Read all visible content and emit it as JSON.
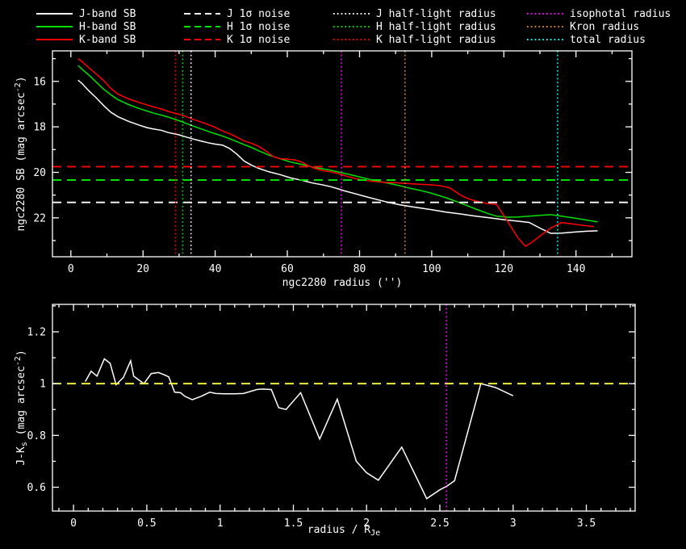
{
  "figure": {
    "bg": "#000000",
    "fg": "#ffffff",
    "object": "ngc2280"
  },
  "legend": {
    "columns": [
      {
        "items": [
          {
            "label": "J-band SB",
            "color": "#ffffff",
            "style": "solid"
          },
          {
            "label": "H-band SB",
            "color": "#00e000",
            "style": "solid"
          },
          {
            "label": "K-band SB",
            "color": "#ff0000",
            "style": "solid"
          }
        ]
      },
      {
        "items": [
          {
            "label": "J 1σ noise",
            "color": "#ffffff",
            "style": "dashed"
          },
          {
            "label": "H 1σ noise",
            "color": "#00e000",
            "style": "dashed"
          },
          {
            "label": "K 1σ noise",
            "color": "#ff0000",
            "style": "dashed"
          }
        ]
      },
      {
        "items": [
          {
            "label": "J half-light radius",
            "color": "#ffffff",
            "style": "dotted"
          },
          {
            "label": "H half-light radius",
            "color": "#00e000",
            "style": "dotted"
          },
          {
            "label": "K half-light radius",
            "color": "#ff0000",
            "style": "dotted"
          }
        ]
      },
      {
        "items": [
          {
            "label": "isophotal radius",
            "color": "#ff00ff",
            "style": "dotted"
          },
          {
            "label": "Kron radius",
            "color": "#e8822a",
            "style": "dotted"
          },
          {
            "label": "total radius",
            "color": "#00ffff",
            "style": "dotted"
          }
        ]
      }
    ]
  },
  "chart_data": [
    {
      "type": "line",
      "name": "sb-profile-plot",
      "xlabel": "ngc2280 radius ('')",
      "ylabel": "ngc2280 SB (mag arcsec^-2)",
      "xlabel_segments": [
        {
          "t": "ngc2280 radius ('')"
        }
      ],
      "ylabel_segments": [
        {
          "t": "ngc2280 SB (mag arcsec"
        },
        {
          "t": "-2",
          "pos": "sup"
        },
        {
          "t": ")"
        }
      ],
      "xlim": [
        -5.1,
        155.5
      ],
      "ylim": [
        14.66,
        23.71
      ],
      "y_inverted": true,
      "x_ticks": [
        0,
        20,
        40,
        60,
        80,
        100,
        120,
        140
      ],
      "x_tick_labels": [
        "0",
        "20",
        "40",
        "60",
        "80",
        "100",
        "120",
        "140"
      ],
      "x_minor": 10,
      "y_ticks": [
        16,
        18,
        20,
        22
      ],
      "y_tick_labels": [
        "16",
        "18",
        "20",
        "22"
      ],
      "y_minor": 1,
      "grid": false,
      "series": [
        {
          "name": "J-band SB",
          "color": "#ffffff",
          "style": "solid",
          "x": [
            2,
            3,
            5,
            7,
            9,
            11,
            13,
            16,
            19,
            21,
            23,
            25,
            27,
            30,
            32,
            34,
            36,
            38,
            40,
            42,
            44,
            46,
            48,
            50,
            52,
            55,
            58,
            61,
            64,
            67,
            70,
            72,
            74,
            76,
            79,
            82,
            85,
            88,
            91,
            94,
            97,
            100,
            104,
            108,
            112,
            116,
            120,
            124,
            127,
            130,
            133,
            136,
            140,
            143,
            146
          ],
          "y": [
            15.95,
            16.08,
            16.42,
            16.72,
            17.05,
            17.35,
            17.55,
            17.76,
            17.93,
            18.03,
            18.1,
            18.15,
            18.25,
            18.35,
            18.45,
            18.54,
            18.62,
            18.7,
            18.76,
            18.8,
            18.95,
            19.2,
            19.5,
            19.68,
            19.82,
            19.98,
            20.1,
            20.25,
            20.35,
            20.47,
            20.56,
            20.63,
            20.72,
            20.82,
            20.95,
            21.08,
            21.2,
            21.32,
            21.42,
            21.5,
            21.57,
            21.64,
            21.75,
            21.83,
            21.92,
            22.0,
            22.08,
            22.15,
            22.2,
            22.45,
            22.68,
            22.67,
            22.62,
            22.59,
            22.57
          ]
        },
        {
          "name": "H-band SB",
          "color": "#00e000",
          "style": "solid",
          "x": [
            2,
            3,
            5,
            7,
            9,
            11,
            13,
            16,
            19,
            21,
            23,
            25,
            27,
            30,
            32,
            34,
            36,
            38,
            40,
            42,
            44,
            46,
            48,
            50,
            52,
            55,
            58,
            61,
            64,
            67,
            70,
            72,
            74,
            76,
            79,
            82,
            85,
            88,
            91,
            94,
            97,
            100,
            104,
            108,
            112,
            115,
            118,
            121,
            124,
            127,
            130,
            133,
            136,
            140,
            143,
            146
          ],
          "y": [
            15.3,
            15.45,
            15.73,
            16.03,
            16.33,
            16.58,
            16.8,
            17.02,
            17.2,
            17.3,
            17.4,
            17.48,
            17.57,
            17.73,
            17.85,
            17.97,
            18.08,
            18.2,
            18.3,
            18.4,
            18.52,
            18.65,
            18.78,
            18.9,
            19.05,
            19.25,
            19.4,
            19.55,
            19.65,
            19.77,
            19.85,
            19.91,
            19.98,
            20.05,
            20.16,
            20.28,
            20.38,
            20.48,
            20.58,
            20.7,
            20.8,
            20.92,
            21.12,
            21.35,
            21.6,
            21.78,
            21.93,
            21.97,
            21.96,
            21.93,
            21.89,
            21.86,
            21.93,
            22.02,
            22.1,
            22.18
          ]
        },
        {
          "name": "K-band SB",
          "color": "#ff0000",
          "style": "solid",
          "x": [
            2,
            3,
            5,
            7,
            9,
            11,
            13,
            16,
            19,
            21,
            23,
            25,
            27,
            30,
            32,
            34,
            36,
            38,
            40,
            42,
            44,
            46,
            48,
            50,
            52,
            54,
            56,
            58,
            60,
            62,
            64,
            66,
            68,
            70,
            72,
            74,
            76,
            79,
            81,
            84,
            87,
            90,
            93,
            96,
            99,
            102,
            105,
            108,
            110,
            112,
            114,
            116,
            118,
            120,
            122,
            124,
            126,
            128,
            130,
            133,
            136,
            139,
            142,
            145
          ],
          "y": [
            15.0,
            15.12,
            15.4,
            15.68,
            15.95,
            16.3,
            16.55,
            16.77,
            16.93,
            17.03,
            17.13,
            17.21,
            17.32,
            17.45,
            17.55,
            17.68,
            17.78,
            17.9,
            18.02,
            18.18,
            18.3,
            18.45,
            18.62,
            18.72,
            18.85,
            19.05,
            19.3,
            19.4,
            19.42,
            19.45,
            19.55,
            19.72,
            19.85,
            19.93,
            19.98,
            20.05,
            20.15,
            20.28,
            20.34,
            20.4,
            20.44,
            20.46,
            20.49,
            20.52,
            20.54,
            20.58,
            20.68,
            21.0,
            21.15,
            21.25,
            21.33,
            21.38,
            21.41,
            21.9,
            22.4,
            22.9,
            23.25,
            23.05,
            22.8,
            22.45,
            22.21,
            22.27,
            22.33,
            22.39
          ]
        }
      ],
      "h_lines": [
        {
          "name": "J 1σ noise",
          "color": "#ffffff",
          "style": "dashed",
          "y": 21.32
        },
        {
          "name": "H 1σ noise",
          "color": "#00e000",
          "style": "dashed",
          "y": 20.34
        },
        {
          "name": "K 1σ noise",
          "color": "#ff0000",
          "style": "dashed",
          "y": 19.75
        }
      ],
      "v_lines": [
        {
          "name": "K half-light radius",
          "color": "#ff0000",
          "style": "dotted",
          "x": 29.0
        },
        {
          "name": "H half-light radius",
          "color": "#00e000",
          "style": "dotted",
          "x": 31.0
        },
        {
          "name": "J half-light radius",
          "color": "#ffffff",
          "style": "dotted",
          "x": 33.3
        },
        {
          "name": "isophotal radius",
          "color": "#ff00ff",
          "style": "dotted",
          "x": 75.0
        },
        {
          "name": "Kron radius",
          "color": "#e8822a",
          "style": "dotted",
          "x": 92.6
        },
        {
          "name": "total radius",
          "color": "#00ffff",
          "style": "dotted",
          "x": 134.9
        }
      ]
    },
    {
      "type": "line",
      "name": "color-profile-plot",
      "xlabel": "radius / R_Je",
      "ylabel": "J-K_s (mag arcsec^-2)",
      "xlabel_segments": [
        {
          "t": "radius / R"
        },
        {
          "t": "Je",
          "pos": "sub"
        }
      ],
      "ylabel_segments": [
        {
          "t": "J-K"
        },
        {
          "t": "s",
          "pos": "sub"
        },
        {
          "t": " (mag arcsec"
        },
        {
          "t": "-2",
          "pos": "sup"
        },
        {
          "t": ")"
        }
      ],
      "xlim": [
        -0.144,
        3.833
      ],
      "ylim": [
        0.508,
        1.306
      ],
      "y_inverted": false,
      "x_ticks": [
        0,
        0.5,
        1,
        1.5,
        2,
        2.5,
        3,
        3.5
      ],
      "x_tick_labels": [
        "0",
        "0.5",
        "1",
        "1.5",
        "2",
        "2.5",
        "3",
        "3.5"
      ],
      "x_minor": 0.1,
      "y_ticks": [
        0.6,
        0.8,
        1,
        1.2
      ],
      "y_tick_labels": [
        "0.6",
        "0.8",
        "1",
        "1.2"
      ],
      "y_minor": 0.1,
      "grid": false,
      "series": [
        {
          "name": "J-Ks color",
          "color": "#ffffff",
          "style": "solid",
          "x": [
            0.08,
            0.12,
            0.16,
            0.21,
            0.25,
            0.29,
            0.34,
            0.39,
            0.41,
            0.48,
            0.53,
            0.58,
            0.62,
            0.65,
            0.69,
            0.73,
            0.76,
            0.81,
            0.87,
            0.93,
            0.97,
            1.03,
            1.1,
            1.16,
            1.25,
            1.29,
            1.35,
            1.4,
            1.45,
            1.55,
            1.68,
            1.8,
            1.93,
            2.0,
            2.08,
            2.24,
            2.41,
            2.5,
            2.55,
            2.6,
            2.78,
            2.88,
            3.0
          ],
          "y": [
            1.008,
            1.048,
            1.029,
            1.096,
            1.078,
            0.996,
            1.024,
            1.088,
            1.029,
            1.0,
            1.039,
            1.043,
            1.034,
            1.026,
            0.967,
            0.965,
            0.951,
            0.938,
            0.951,
            0.967,
            0.962,
            0.961,
            0.961,
            0.962,
            0.977,
            0.979,
            0.977,
            0.907,
            0.9,
            0.965,
            0.786,
            0.94,
            0.7,
            0.656,
            0.627,
            0.755,
            0.556,
            0.59,
            0.605,
            0.625,
            1.0,
            0.985,
            0.953
          ]
        }
      ],
      "h_lines": [
        {
          "name": "unity color",
          "color": "#ffff40",
          "style": "dashed",
          "y": 1.0
        }
      ],
      "v_lines": [
        {
          "name": "isophotal radius",
          "color": "#ff00ff",
          "style": "dotted",
          "x": 2.545
        }
      ]
    }
  ]
}
